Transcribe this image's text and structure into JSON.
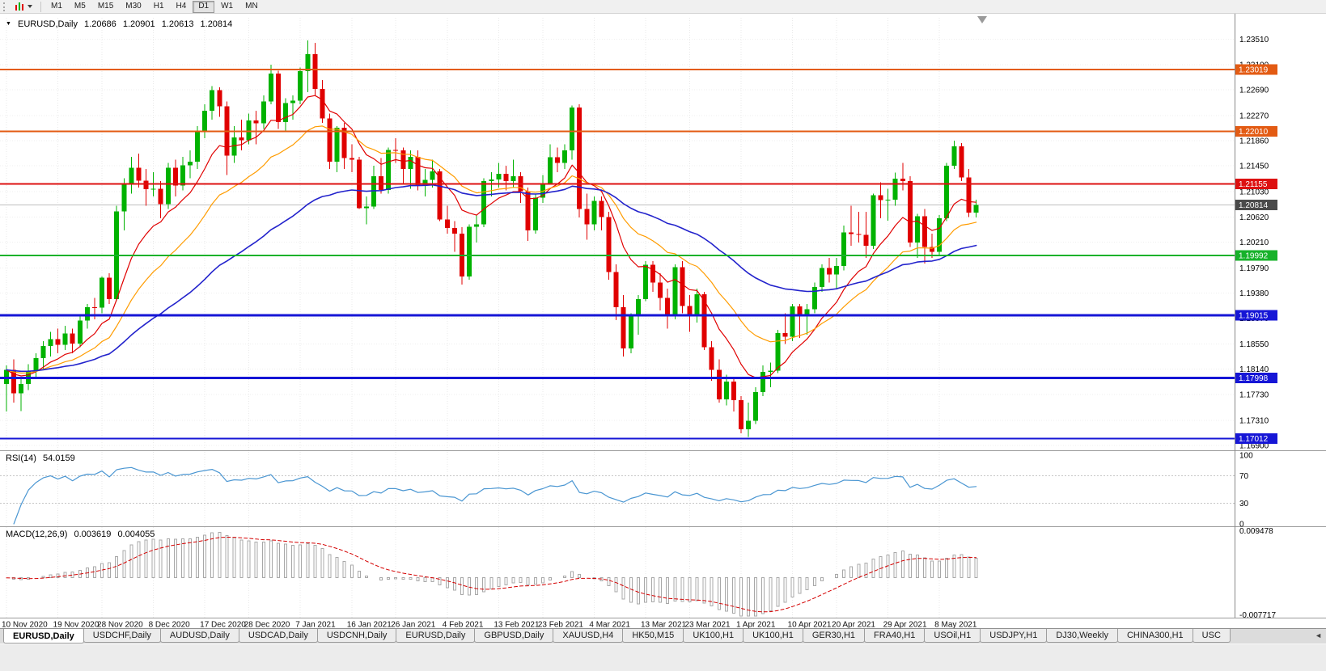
{
  "toolbar": {
    "timeframes": [
      "M1",
      "M5",
      "M15",
      "M30",
      "H1",
      "H4",
      "D1",
      "W1",
      "MN"
    ],
    "active": "D1"
  },
  "icons": {
    "symbol_marker": "▼",
    "tab_scroll_left": "◄"
  },
  "chart": {
    "title": "EURUSD,Daily",
    "ohlc": {
      "open": "1.20686",
      "high": "1.20901",
      "low": "1.20613",
      "close": "1.20814"
    }
  },
  "indicators": {
    "rsi": {
      "name": "RSI(14)",
      "value": "54.0159"
    },
    "macd": {
      "name": "MACD(12,26,9)",
      "main": "0.003619",
      "signal": "0.004055"
    }
  },
  "tabs": [
    {
      "label": "EURUSD,Daily",
      "active": true
    },
    {
      "label": "USDCHF,Daily",
      "active": false
    },
    {
      "label": "AUDUSD,Daily",
      "active": false
    },
    {
      "label": "USDCAD,Daily",
      "active": false
    },
    {
      "label": "USDCNH,Daily",
      "active": false
    },
    {
      "label": "EURUSD,Daily",
      "active": false
    },
    {
      "label": "GBPUSD,Daily",
      "active": false
    },
    {
      "label": "XAUUSD,H4",
      "active": false
    },
    {
      "label": "HK50,M15",
      "active": false
    },
    {
      "label": "UK100,H1",
      "active": false
    },
    {
      "label": "UK100,H1",
      "active": false
    },
    {
      "label": "GER30,H1",
      "active": false
    },
    {
      "label": "FRA40,H1",
      "active": false
    },
    {
      "label": "USOil,H1",
      "active": false
    },
    {
      "label": "USDJPY,H1",
      "active": false
    },
    {
      "label": "DJ30,Weekly",
      "active": false
    },
    {
      "label": "CHINA300,H1",
      "active": false
    },
    {
      "label": "USC",
      "active": false
    }
  ],
  "chart_data": {
    "type": "candlestick",
    "symbol": "EURUSD",
    "timeframe": "Daily",
    "y_range": {
      "max": 1.2386,
      "min": 1.16821
    },
    "y_ticks": [
      "1.23510",
      "1.23100",
      "1.22690",
      "1.22270",
      "1.21860",
      "1.21450",
      "1.21030",
      "1.20620",
      "1.20210",
      "1.19790",
      "1.19380",
      "1.18970",
      "1.18550",
      "1.18140",
      "1.17730",
      "1.17310",
      "1.16900"
    ],
    "x_ticks": [
      {
        "i": 0,
        "label": "10 Nov 2020"
      },
      {
        "i": 7,
        "label": "19 Nov 2020"
      },
      {
        "i": 13,
        "label": "28 Nov 2020"
      },
      {
        "i": 20,
        "label": "8 Dec 2020"
      },
      {
        "i": 27,
        "label": "17 Dec 2020"
      },
      {
        "i": 33,
        "label": "28 Dec 2020"
      },
      {
        "i": 40,
        "label": "7 Jan 2021"
      },
      {
        "i": 47,
        "label": "16 Jan 2021"
      },
      {
        "i": 53,
        "label": "26 Jan 2021"
      },
      {
        "i": 60,
        "label": "4 Feb 2021"
      },
      {
        "i": 67,
        "label": "13 Feb 2021"
      },
      {
        "i": 73,
        "label": "23 Feb 2021"
      },
      {
        "i": 80,
        "label": "4 Mar 2021"
      },
      {
        "i": 87,
        "label": "13 Mar 2021"
      },
      {
        "i": 93,
        "label": "23 Mar 2021"
      },
      {
        "i": 100,
        "label": "1 Apr 2021"
      },
      {
        "i": 107,
        "label": "10 Apr 2021"
      },
      {
        "i": 113,
        "label": "20 Apr 2021"
      },
      {
        "i": 120,
        "label": "29 Apr 2021"
      },
      {
        "i": 127,
        "label": "8 May 2021"
      }
    ],
    "hlines": [
      {
        "price": 1.23019,
        "label": "1.23019",
        "color": "#e35b13",
        "width": 2
      },
      {
        "price": 1.2201,
        "label": "1.22010",
        "color": "#e35b13",
        "width": 2
      },
      {
        "price": 1.21155,
        "label": "1.21155",
        "color": "#dd1111",
        "width": 2
      },
      {
        "price": 1.19992,
        "label": "1.19992",
        "color": "#17b22a",
        "width": 2
      },
      {
        "price": 1.19015,
        "label": "1.19015",
        "color": "#1616d6",
        "width": 3
      },
      {
        "price": 1.17998,
        "label": "1.17998",
        "color": "#1616d6",
        "width": 3
      },
      {
        "price": 1.17012,
        "label": "1.17012",
        "color": "#1616d6",
        "width": 2
      }
    ],
    "current_price": {
      "value": 1.20814,
      "label": "1.20814",
      "tag_color": "#4a4a4a",
      "line_color": "#c0c0c0"
    },
    "candle_colors": {
      "up": "#00b200",
      "down": "#e00000"
    },
    "moving_averages": [
      {
        "period": 10,
        "color": "#e00000",
        "width": 1.2,
        "name": "ma-red-fast"
      },
      {
        "period": 21,
        "color": "#ff9c00",
        "width": 1.2,
        "name": "ma-orange-mid"
      },
      {
        "period": 50,
        "color": "#2323cc",
        "width": 1.6,
        "name": "ma-blue-slow"
      }
    ],
    "rsi": {
      "period": 14,
      "color": "#4a96d2",
      "levels": [
        70,
        30
      ],
      "axis_labels": [
        "100",
        "70",
        "30",
        "0"
      ],
      "axis_values": [
        100,
        70,
        30,
        0
      ]
    },
    "macd": {
      "fast": 12,
      "slow": 26,
      "signal": 9,
      "bar_color": "#a8a8a8",
      "signal_color": "#d40000",
      "range": {
        "max": 0.0095,
        "min": -0.0078
      },
      "axis_max_label": "0.009478",
      "axis_min_label": "-0.007717"
    },
    "candles": [
      [
        1.179,
        1.182,
        1.1745,
        1.1813
      ],
      [
        1.1813,
        1.183,
        1.176,
        1.1775
      ],
      [
        1.1775,
        1.18,
        1.1746,
        1.179
      ],
      [
        1.179,
        1.1822,
        1.178,
        1.1812
      ],
      [
        1.1812,
        1.184,
        1.1798,
        1.1832
      ],
      [
        1.1832,
        1.186,
        1.1815,
        1.1852
      ],
      [
        1.1852,
        1.1875,
        1.1835,
        1.1863
      ],
      [
        1.1863,
        1.188,
        1.184,
        1.1854
      ],
      [
        1.1854,
        1.1885,
        1.1845,
        1.1872
      ],
      [
        1.1872,
        1.188,
        1.184,
        1.1856
      ],
      [
        1.1856,
        1.19,
        1.185,
        1.1893
      ],
      [
        1.1893,
        1.192,
        1.188,
        1.1915
      ],
      [
        1.1915,
        1.193,
        1.1895,
        1.1914
      ],
      [
        1.1914,
        1.1965,
        1.1905,
        1.1963
      ],
      [
        1.1963,
        1.197,
        1.192,
        1.1928
      ],
      [
        1.1928,
        1.208,
        1.1925,
        1.2071
      ],
      [
        1.2071,
        1.2125,
        1.204,
        1.2115
      ],
      [
        1.2115,
        1.216,
        1.21,
        1.2142
      ],
      [
        1.2142,
        1.2165,
        1.211,
        1.2121
      ],
      [
        1.2121,
        1.214,
        1.208,
        1.2107
      ],
      [
        1.2107,
        1.2135,
        1.2095,
        1.2108
      ],
      [
        1.2108,
        1.212,
        1.206,
        1.2083
      ],
      [
        1.2083,
        1.215,
        1.2075,
        1.2142
      ],
      [
        1.2142,
        1.2155,
        1.2095,
        1.2113
      ],
      [
        1.2113,
        1.216,
        1.2105,
        1.2146
      ],
      [
        1.2146,
        1.217,
        1.2125,
        1.2152
      ],
      [
        1.2152,
        1.221,
        1.214,
        1.2202
      ],
      [
        1.2202,
        1.2245,
        1.219,
        1.2235
      ],
      [
        1.2235,
        1.2275,
        1.222,
        1.2268
      ],
      [
        1.2268,
        1.2273,
        1.2225,
        1.2242
      ],
      [
        1.2242,
        1.225,
        1.213,
        1.2162
      ],
      [
        1.2162,
        1.221,
        1.215,
        1.2191
      ],
      [
        1.2191,
        1.222,
        1.217,
        1.2187
      ],
      [
        1.2187,
        1.223,
        1.218,
        1.2219
      ],
      [
        1.2219,
        1.2235,
        1.218,
        1.2214
      ],
      [
        1.2214,
        1.226,
        1.2205,
        1.225
      ],
      [
        1.225,
        1.231,
        1.2245,
        1.2295
      ],
      [
        1.2295,
        1.23,
        1.2205,
        1.2216
      ],
      [
        1.2216,
        1.2255,
        1.22,
        1.2247
      ],
      [
        1.2247,
        1.226,
        1.222,
        1.2251
      ],
      [
        1.2251,
        1.2305,
        1.2245,
        1.2299
      ],
      [
        1.2299,
        1.2349,
        1.2265,
        1.2327
      ],
      [
        1.2327,
        1.2345,
        1.226,
        1.227
      ],
      [
        1.227,
        1.2285,
        1.2215,
        1.2222
      ],
      [
        1.2222,
        1.223,
        1.214,
        1.2152
      ],
      [
        1.2152,
        1.221,
        1.2135,
        1.2207
      ],
      [
        1.2207,
        1.2215,
        1.214,
        1.2158
      ],
      [
        1.2158,
        1.218,
        1.2135,
        1.2155
      ],
      [
        1.2155,
        1.216,
        1.2075,
        1.2076
      ],
      [
        1.2076,
        1.2095,
        1.205,
        1.2079
      ],
      [
        1.2079,
        1.2145,
        1.2075,
        1.2128
      ],
      [
        1.2128,
        1.2158,
        1.21,
        1.2106
      ],
      [
        1.2106,
        1.2175,
        1.21,
        1.2171
      ],
      [
        1.2171,
        1.219,
        1.215,
        1.217
      ],
      [
        1.217,
        1.2175,
        1.2115,
        1.214
      ],
      [
        1.214,
        1.217,
        1.2108,
        1.216
      ],
      [
        1.216,
        1.217,
        1.2105,
        1.2113
      ],
      [
        1.2113,
        1.214,
        1.2095,
        1.2122
      ],
      [
        1.2122,
        1.2155,
        1.211,
        1.2136
      ],
      [
        1.2136,
        1.214,
        1.2055,
        1.2058
      ],
      [
        1.2058,
        1.208,
        1.2035,
        1.2044
      ],
      [
        1.2044,
        1.2055,
        1.2005,
        1.2035
      ],
      [
        1.2035,
        1.2045,
        1.1952,
        1.1965
      ],
      [
        1.1965,
        1.205,
        1.196,
        1.2046
      ],
      [
        1.2046,
        1.2065,
        1.202,
        1.205
      ],
      [
        1.205,
        1.2125,
        1.2045,
        1.212
      ],
      [
        1.212,
        1.2135,
        1.2095,
        1.2123
      ],
      [
        1.2123,
        1.215,
        1.211,
        1.2132
      ],
      [
        1.2132,
        1.2145,
        1.2105,
        1.212
      ],
      [
        1.212,
        1.2155,
        1.211,
        1.2128
      ],
      [
        1.2128,
        1.2135,
        1.2085,
        1.2104
      ],
      [
        1.2104,
        1.211,
        1.2023,
        1.204
      ],
      [
        1.204,
        1.21,
        1.2035,
        1.2093
      ],
      [
        1.2093,
        1.213,
        1.2085,
        1.2117
      ],
      [
        1.2117,
        1.218,
        1.2115,
        1.2159
      ],
      [
        1.2159,
        1.2175,
        1.2135,
        1.215
      ],
      [
        1.215,
        1.218,
        1.214,
        1.217
      ],
      [
        1.217,
        1.2243,
        1.2155,
        1.224
      ],
      [
        1.224,
        1.2245,
        1.2061,
        1.2075
      ],
      [
        1.2075,
        1.21,
        1.2025,
        1.205
      ],
      [
        1.205,
        1.2095,
        1.204,
        1.2088
      ],
      [
        1.2088,
        1.2095,
        1.204,
        1.2062
      ],
      [
        1.2062,
        1.207,
        1.196,
        1.1972
      ],
      [
        1.1972,
        1.1985,
        1.1894,
        1.1915
      ],
      [
        1.1915,
        1.1935,
        1.1835,
        1.1848
      ],
      [
        1.1848,
        1.1905,
        1.184,
        1.19
      ],
      [
        1.19,
        1.1935,
        1.187,
        1.1928
      ],
      [
        1.1928,
        1.199,
        1.1925,
        1.1984
      ],
      [
        1.1984,
        1.199,
        1.194,
        1.1955
      ],
      [
        1.1955,
        1.197,
        1.191,
        1.193
      ],
      [
        1.193,
        1.1945,
        1.188,
        1.19
      ],
      [
        1.19,
        1.1985,
        1.1895,
        1.198
      ],
      [
        1.198,
        1.199,
        1.1905,
        1.1917
      ],
      [
        1.1917,
        1.1935,
        1.1875,
        1.1904
      ],
      [
        1.1904,
        1.1945,
        1.189,
        1.1936
      ],
      [
        1.1936,
        1.194,
        1.1845,
        1.185
      ],
      [
        1.185,
        1.186,
        1.1795,
        1.1813
      ],
      [
        1.1813,
        1.183,
        1.176,
        1.1765
      ],
      [
        1.1765,
        1.1805,
        1.1755,
        1.1794
      ],
      [
        1.1794,
        1.18,
        1.1745,
        1.1764
      ],
      [
        1.1764,
        1.177,
        1.171,
        1.1716
      ],
      [
        1.1716,
        1.176,
        1.1704,
        1.173
      ],
      [
        1.173,
        1.1785,
        1.1725,
        1.1777
      ],
      [
        1.1777,
        1.182,
        1.177,
        1.181
      ],
      [
        1.181,
        1.1825,
        1.1785,
        1.1812
      ],
      [
        1.1812,
        1.1878,
        1.1808,
        1.1873
      ],
      [
        1.1873,
        1.1905,
        1.1855,
        1.1867
      ],
      [
        1.1867,
        1.192,
        1.186,
        1.1916
      ],
      [
        1.1916,
        1.192,
        1.1865,
        1.19
      ],
      [
        1.19,
        1.192,
        1.187,
        1.1912
      ],
      [
        1.1912,
        1.1955,
        1.1905,
        1.1948
      ],
      [
        1.1948,
        1.1985,
        1.194,
        1.1979
      ],
      [
        1.1979,
        1.1995,
        1.1955,
        1.1968
      ],
      [
        1.1968,
        1.1995,
        1.1945,
        1.1982
      ],
      [
        1.1982,
        1.2048,
        1.1975,
        1.2037
      ],
      [
        1.2037,
        1.208,
        1.2015,
        1.2034
      ],
      [
        1.2034,
        1.207,
        1.202,
        1.2033
      ],
      [
        1.2033,
        1.207,
        1.1995,
        1.2015
      ],
      [
        1.2015,
        1.21,
        1.201,
        1.2097
      ],
      [
        1.2097,
        1.2118,
        1.206,
        1.2089
      ],
      [
        1.2089,
        1.2108,
        1.2056,
        1.209
      ],
      [
        1.209,
        1.2134,
        1.208,
        1.2124
      ],
      [
        1.2124,
        1.215,
        1.2105,
        1.212
      ],
      [
        1.212,
        1.2128,
        1.2013,
        1.202
      ],
      [
        1.202,
        1.2067,
        1.1995,
        1.2063
      ],
      [
        1.2063,
        1.2075,
        1.1986,
        1.2013
      ],
      [
        1.2013,
        1.2035,
        1.1995,
        1.2005
      ],
      [
        1.2005,
        1.2065,
        1.2,
        1.206
      ],
      [
        1.206,
        1.215,
        1.2055,
        1.2145
      ],
      [
        1.2145,
        1.2186,
        1.214,
        1.2177
      ],
      [
        1.2177,
        1.2182,
        1.212,
        1.2126
      ],
      [
        1.2126,
        1.214,
        1.2062,
        1.2069
      ],
      [
        1.20686,
        1.20901,
        1.20613,
        1.20814
      ]
    ]
  }
}
